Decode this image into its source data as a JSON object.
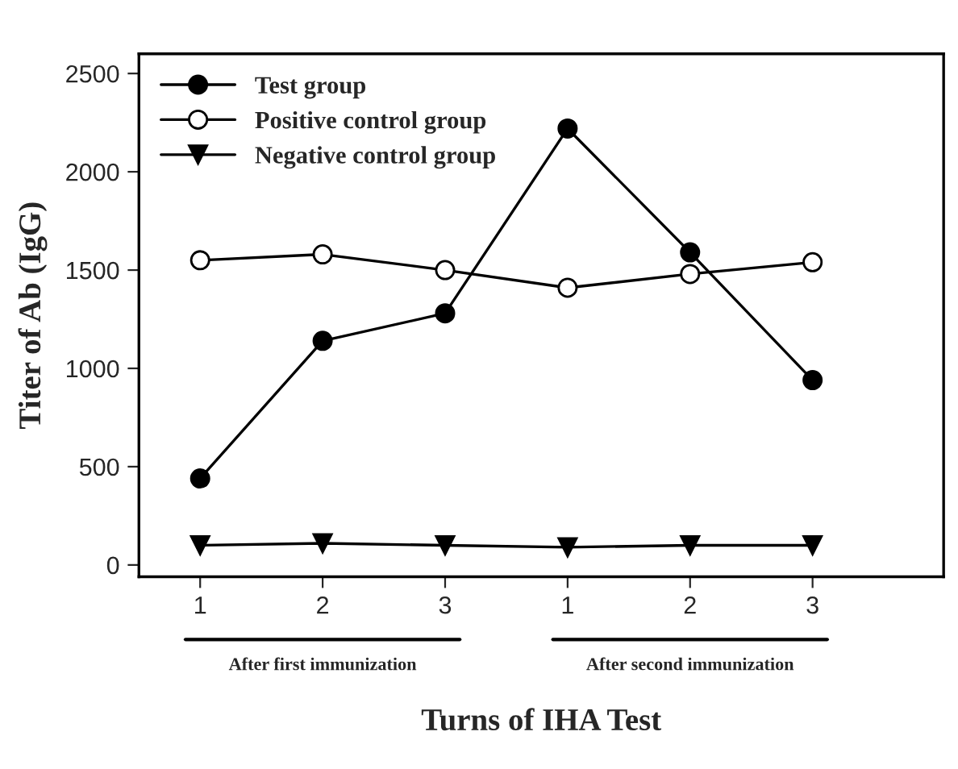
{
  "chart_data": {
    "type": "line",
    "xlabel": "Turns of IHA Test",
    "ylabel": "Titer of Ab (IgG)",
    "categories": [
      "1",
      "2",
      "3",
      "1",
      "2",
      "3"
    ],
    "series": [
      {
        "name": "Test group",
        "color": "#000000",
        "marker": "circle",
        "values": [
          440,
          1140,
          1280,
          2220,
          1590,
          940
        ]
      },
      {
        "name": "Positive control group",
        "color": "#000000",
        "marker": "circle",
        "values": [
          1550,
          1580,
          1500,
          1410,
          1480,
          1540
        ]
      },
      {
        "name": "Negative control group",
        "color": "#000000",
        "marker": "triangle",
        "values": [
          100,
          110,
          100,
          90,
          100,
          100
        ]
      }
    ],
    "ylim": [
      -60,
      2600
    ],
    "yticks": [
      0,
      500,
      1000,
      1500,
      2000,
      2500
    ],
    "grid": false,
    "legend": "top left",
    "line_style": "solid",
    "annotations": [
      "After first immunization",
      "After second immunization"
    ]
  }
}
